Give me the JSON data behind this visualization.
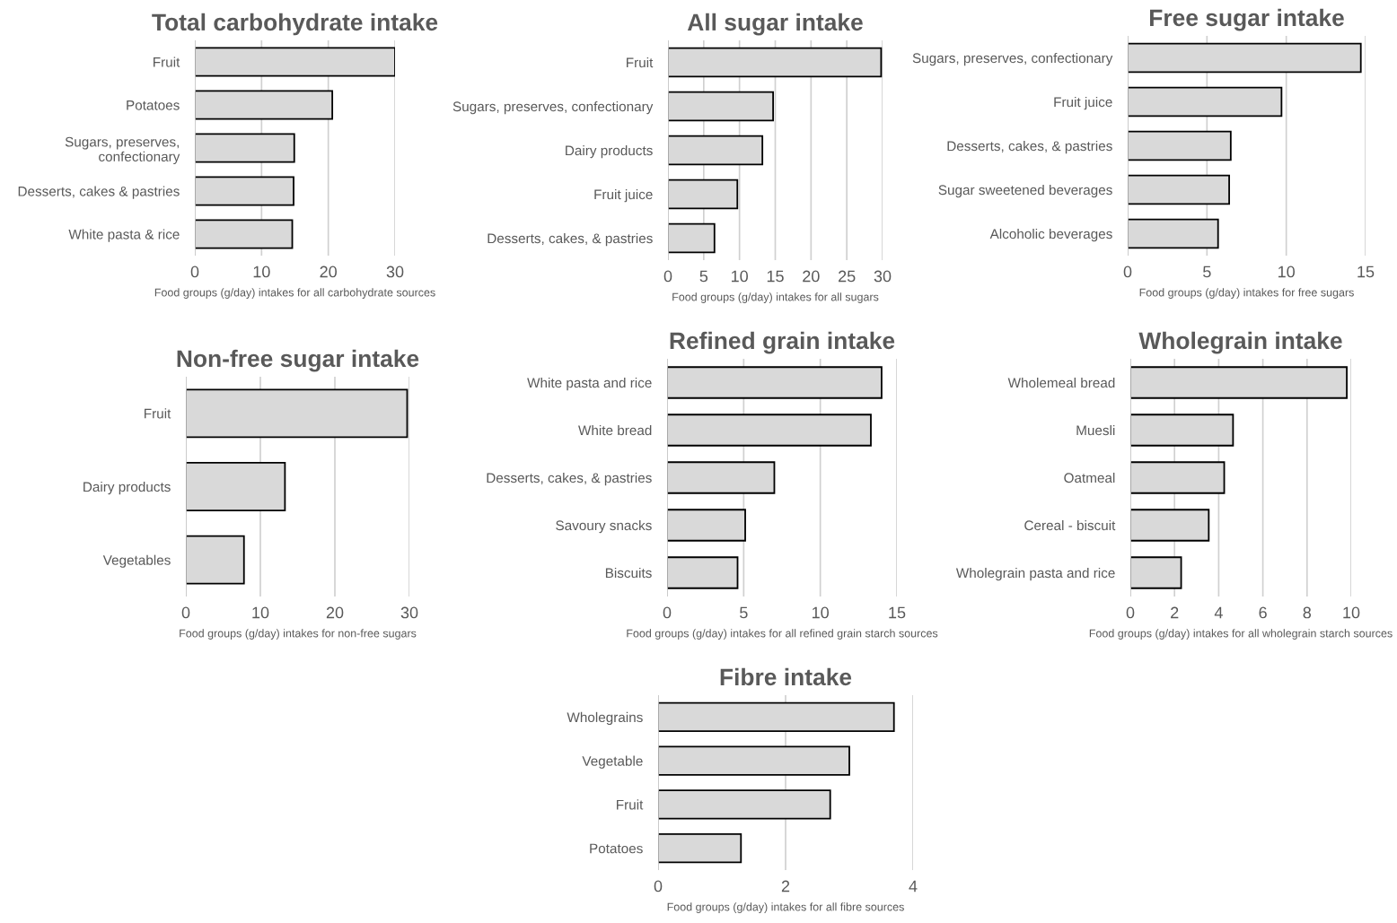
{
  "chart_data": [
    {
      "type": "bar",
      "orientation": "horizontal",
      "title": "Total carbohydrate intake",
      "xlabel": "Food groups (g/day) intakes for all carbohydrate sources",
      "categories": [
        "Fruit",
        "Potatoes",
        "Sugars, preserves,\nconfectionary",
        "Desserts, cakes & pastries",
        "White pasta & rice"
      ],
      "values": [
        30.0,
        20.6,
        14.9,
        14.8,
        14.6
      ],
      "color": "#d9d9d9",
      "xlim": [
        0,
        30
      ],
      "xticks": [
        0,
        10,
        20,
        30
      ],
      "grid": "x"
    },
    {
      "type": "bar",
      "orientation": "horizontal",
      "title": "All sugar intake",
      "xlabel": "Food groups (g/day) intakes for all sugars",
      "categories": [
        "Fruit",
        "Sugars, preserves, confectionary",
        "Dairy products",
        "Fruit juice",
        "Desserts, cakes, & pastries"
      ],
      "values": [
        29.8,
        14.7,
        13.2,
        9.7,
        6.5
      ],
      "color": "#d9d9d9",
      "xlim": [
        0,
        30
      ],
      "xticks": [
        0,
        5,
        10,
        15,
        20,
        25,
        30
      ],
      "grid": "x"
    },
    {
      "type": "bar",
      "orientation": "horizontal",
      "title": "Free sugar intake",
      "xlabel": "Food groups (g/day) intakes for free sugars",
      "categories": [
        "Sugars, preserves, confectionary",
        "Fruit juice",
        "Desserts, cakes, & pastries",
        "Sugar sweetened beverages",
        "Alcoholic beverages"
      ],
      "values": [
        14.7,
        9.7,
        6.5,
        6.4,
        5.7
      ],
      "color": "#d9d9d9",
      "xlim": [
        0,
        15
      ],
      "xticks": [
        0,
        5,
        10,
        15
      ],
      "grid": "x"
    },
    {
      "type": "bar",
      "orientation": "horizontal",
      "title": "Non-free sugar intake",
      "xlabel": "Food groups (g/day) intakes for non-free sugars",
      "categories": [
        "Fruit",
        "Dairy products",
        "Vegetables"
      ],
      "values": [
        29.7,
        13.3,
        7.8
      ],
      "color": "#d9d9d9",
      "xlim": [
        0,
        30
      ],
      "xticks": [
        0,
        10,
        20,
        30
      ],
      "grid": "x"
    },
    {
      "type": "bar",
      "orientation": "horizontal",
      "title": "Refined grain intake",
      "xlabel": "Food groups (g/day) intakes for all refined grain starch sources",
      "categories": [
        "White pasta and rice",
        "White bread",
        "Desserts, cakes, & pastries",
        "Savoury snacks",
        "Biscuits"
      ],
      "values": [
        14.0,
        13.3,
        7.0,
        5.1,
        4.6
      ],
      "color": "#d9d9d9",
      "xlim": [
        0,
        15
      ],
      "xticks": [
        0,
        5,
        10,
        15
      ],
      "grid": "x"
    },
    {
      "type": "bar",
      "orientation": "horizontal",
      "title": "Wholegrain intake",
      "xlabel": "Food groups (g/day) intakes for all wholegrain starch sources",
      "categories": [
        "Wholemeal bread",
        "Muesli",
        "Oatmeal",
        "Cereal - biscuit",
        "Wholegrain pasta and rice"
      ],
      "values": [
        9.8,
        4.65,
        4.25,
        3.55,
        2.3
      ],
      "color": "#d9d9d9",
      "xlim": [
        0,
        10
      ],
      "xticks": [
        0,
        2,
        4,
        6,
        8,
        10
      ],
      "grid": "x"
    },
    {
      "type": "bar",
      "orientation": "horizontal",
      "title": "Fibre intake",
      "xlabel": "Food groups (g/day) intakes for all fibre sources",
      "categories": [
        "Wholegrains",
        "Vegetable",
        "Fruit",
        "Potatoes"
      ],
      "values": [
        3.7,
        3.0,
        2.7,
        1.3
      ],
      "color": "#d9d9d9",
      "xlim": [
        0,
        4
      ],
      "xticks": [
        0,
        2,
        4
      ],
      "grid": "x"
    }
  ]
}
